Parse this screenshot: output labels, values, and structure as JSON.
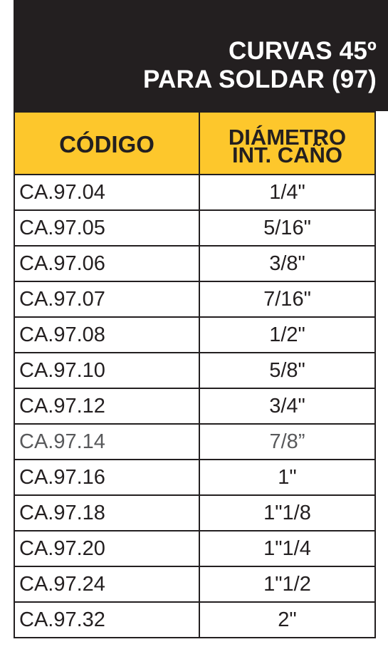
{
  "header": {
    "title_line1": "CURVAS 45º",
    "title_line2": "PARA SOLDAR (97)"
  },
  "table": {
    "columns": {
      "code": "CÓDIGO",
      "diameter_line1": "DIÁMETRO",
      "diameter_line2": "INT. CAÑO"
    },
    "rows": [
      {
        "code": "CA.97.04",
        "diameter": "1/4\""
      },
      {
        "code": "CA.97.05",
        "diameter": "5/16\""
      },
      {
        "code": "CA.97.06",
        "diameter": "3/8\""
      },
      {
        "code": "CA.97.07",
        "diameter": "7/16\""
      },
      {
        "code": "CA.97.08",
        "diameter": "1/2\""
      },
      {
        "code": "CA.97.10",
        "diameter": "5/8\""
      },
      {
        "code": "CA.97.12",
        "diameter": "3/4\""
      },
      {
        "code": "CA.97.14",
        "diameter": "7/8”"
      },
      {
        "code": "CA.97.16",
        "diameter": "1\""
      },
      {
        "code": "CA.97.18",
        "diameter": "1\"1/8"
      },
      {
        "code": "CA.97.20",
        "diameter": "1\"1/4"
      },
      {
        "code": "CA.97.24",
        "diameter": "1\"1/2"
      },
      {
        "code": "CA.97.32",
        "diameter": "2\""
      }
    ]
  },
  "colors": {
    "header_bg": "#231f20",
    "column_header_bg": "#fdc72c",
    "text": "#231f20"
  }
}
